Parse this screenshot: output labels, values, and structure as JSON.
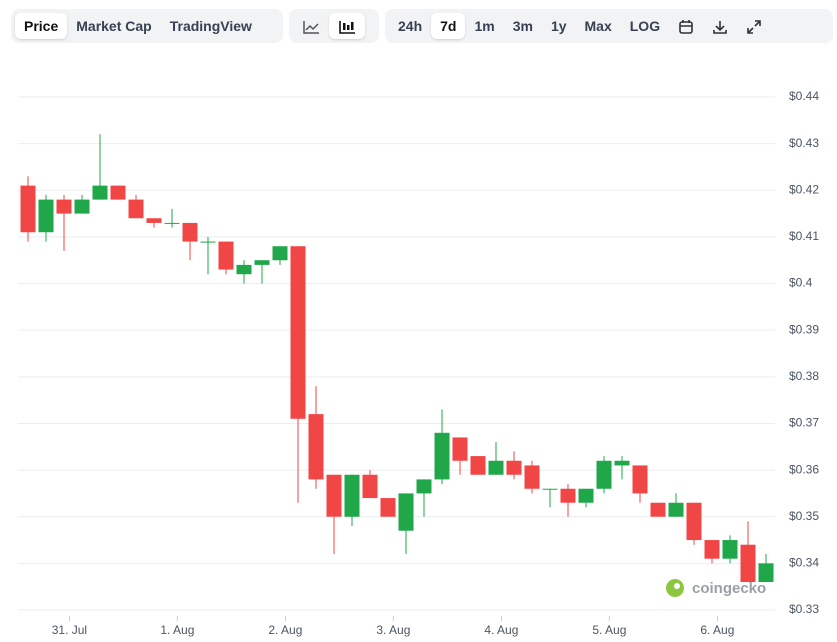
{
  "toolbar": {
    "views": [
      "Price",
      "Market Cap",
      "TradingView"
    ],
    "ranges": [
      "24h",
      "7d",
      "1m",
      "3m",
      "1y",
      "Max",
      "LOG"
    ]
  },
  "chart_data": {
    "type": "candlestick",
    "watermark": "coingecko",
    "categories": [
      null,
      null,
      null,
      null,
      null,
      null,
      null,
      null,
      null,
      null,
      null,
      null,
      null,
      null,
      null,
      null,
      null,
      null,
      null,
      null,
      null,
      null,
      null,
      null,
      null,
      null,
      null,
      null,
      null,
      null,
      null,
      null,
      null,
      null,
      null,
      null,
      null,
      null,
      null,
      null,
      null,
      null
    ],
    "open": [
      0.421,
      0.411,
      0.418,
      0.415,
      0.418,
      0.421,
      0.418,
      0.414,
      0.413,
      0.413,
      0.409,
      0.409,
      0.402,
      0.404,
      0.405,
      0.408,
      0.372,
      0.359,
      0.35,
      0.359,
      0.354,
      0.347,
      0.355,
      0.358,
      0.367,
      0.363,
      0.359,
      0.362,
      0.361,
      0.356,
      0.356,
      0.353,
      0.356,
      0.361,
      0.361,
      0.353,
      0.35,
      0.353,
      0.345,
      0.341,
      0.344,
      0.336
    ],
    "high": [
      0.423,
      0.419,
      0.419,
      0.419,
      0.432,
      0.421,
      0.419,
      0.414,
      0.416,
      0.413,
      0.41,
      0.409,
      0.405,
      0.405,
      0.408,
      0.408,
      0.378,
      0.359,
      0.359,
      0.36,
      0.354,
      0.355,
      0.358,
      0.373,
      0.367,
      0.363,
      0.366,
      0.364,
      0.362,
      0.356,
      0.357,
      0.356,
      0.363,
      0.363,
      0.361,
      0.353,
      0.355,
      0.353,
      0.345,
      0.346,
      0.349,
      0.342
    ],
    "low": [
      0.409,
      0.409,
      0.407,
      0.415,
      0.418,
      0.418,
      0.414,
      0.412,
      0.412,
      0.405,
      0.402,
      0.402,
      0.4,
      0.4,
      0.404,
      0.353,
      0.356,
      0.342,
      0.348,
      0.354,
      0.35,
      0.342,
      0.35,
      0.357,
      0.359,
      0.359,
      0.359,
      0.358,
      0.355,
      0.352,
      0.35,
      0.352,
      0.355,
      0.358,
      0.353,
      0.35,
      0.35,
      0.344,
      0.34,
      0.34,
      0.336,
      0.336
    ],
    "close": [
      0.411,
      0.418,
      0.415,
      0.418,
      0.421,
      0.418,
      0.414,
      0.413,
      0.413,
      0.409,
      0.409,
      0.403,
      0.404,
      0.405,
      0.408,
      0.371,
      0.358,
      0.35,
      0.359,
      0.354,
      0.35,
      0.355,
      0.358,
      0.368,
      0.362,
      0.359,
      0.362,
      0.359,
      0.356,
      0.356,
      0.353,
      0.356,
      0.362,
      0.362,
      0.355,
      0.35,
      0.353,
      0.345,
      0.341,
      0.345,
      0.336,
      0.34
    ],
    "up_color": "#1fa74a",
    "down_color": "#f04646",
    "ylim": [
      0.33,
      0.44
    ],
    "yticks": [
      {
        "value": 0.33,
        "label": "$0.33"
      },
      {
        "value": 0.34,
        "label": "$0.34"
      },
      {
        "value": 0.35,
        "label": "$0.35"
      },
      {
        "value": 0.36,
        "label": "$0.36"
      },
      {
        "value": 0.37,
        "label": "$0.37"
      },
      {
        "value": 0.38,
        "label": "$0.38"
      },
      {
        "value": 0.39,
        "label": "$0.39"
      },
      {
        "value": 0.4,
        "label": "$0.4"
      },
      {
        "value": 0.41,
        "label": "$0.41"
      },
      {
        "value": 0.42,
        "label": "$0.42"
      },
      {
        "value": 0.43,
        "label": "$0.43"
      },
      {
        "value": 0.44,
        "label": "$0.44"
      }
    ],
    "xticks": [
      {
        "value": 2.3,
        "label": "31. Jul"
      },
      {
        "value": 8.3,
        "label": "1. Aug"
      },
      {
        "value": 14.3,
        "label": "2. Aug"
      },
      {
        "value": 20.3,
        "label": "3. Aug"
      },
      {
        "value": 26.3,
        "label": "4. Aug"
      },
      {
        "value": 32.3,
        "label": "5. Aug"
      },
      {
        "value": 38.3,
        "label": "6. Aug"
      }
    ],
    "grid": true
  }
}
